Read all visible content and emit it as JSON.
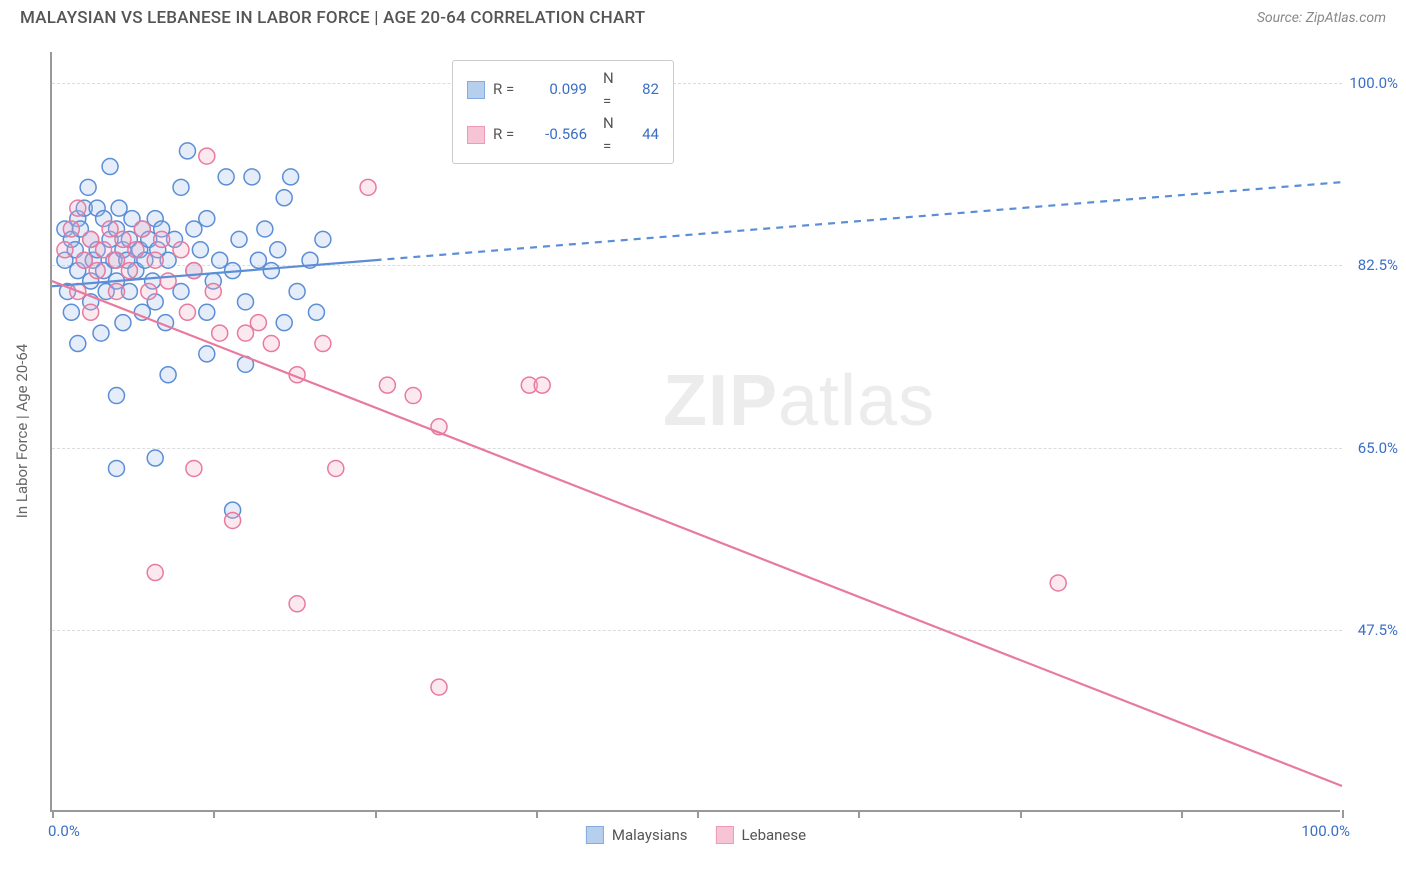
{
  "header": {
    "title": "MALAYSIAN VS LEBANESE IN LABOR FORCE | AGE 20-64 CORRELATION CHART",
    "source": "Source: ZipAtlas.com"
  },
  "chart": {
    "type": "scatter",
    "y_axis_title": "In Labor Force | Age 20-64",
    "xlim": [
      0,
      100
    ],
    "ylim": [
      30,
      103
    ],
    "x_ticks": [
      0,
      12.5,
      25,
      37.5,
      50,
      62.5,
      75,
      87.5,
      100
    ],
    "y_gridlines": [
      47.5,
      65.0,
      82.5,
      100.0
    ],
    "x_labels": {
      "start": "0.0%",
      "end": "100.0%"
    },
    "y_tick_labels": [
      "47.5%",
      "65.0%",
      "82.5%",
      "100.0%"
    ],
    "grid_color": "#dcdcdc",
    "axis_color": "#999999",
    "background": "#ffffff",
    "marker_radius": 8,
    "marker_stroke_width": 1.5,
    "marker_fill_opacity": 0.28,
    "line_width": 2.2,
    "series": [
      {
        "name": "Malaysians",
        "color_stroke": "#5b8ed6",
        "color_fill": "#9ebfe8",
        "R": "0.099",
        "N": "82",
        "trend": {
          "x1": 0,
          "y1": 80.5,
          "x2": 100,
          "y2": 90.5,
          "solid_until_x": 25
        },
        "points": [
          [
            1,
            83
          ],
          [
            1,
            86
          ],
          [
            1.2,
            80
          ],
          [
            1.5,
            85
          ],
          [
            1.5,
            78
          ],
          [
            1.8,
            84
          ],
          [
            2,
            87
          ],
          [
            2,
            75
          ],
          [
            2,
            82
          ],
          [
            2.2,
            86
          ],
          [
            2.5,
            83
          ],
          [
            2.5,
            88
          ],
          [
            2.8,
            90
          ],
          [
            3,
            81
          ],
          [
            3,
            79
          ],
          [
            3,
            85
          ],
          [
            3.2,
            83
          ],
          [
            3.5,
            84
          ],
          [
            3.5,
            88
          ],
          [
            3.8,
            76
          ],
          [
            4,
            82
          ],
          [
            4,
            87
          ],
          [
            4.2,
            80
          ],
          [
            4.5,
            85
          ],
          [
            4.5,
            92
          ],
          [
            4.8,
            83
          ],
          [
            5,
            81
          ],
          [
            5,
            86
          ],
          [
            5.2,
            88
          ],
          [
            5.5,
            84
          ],
          [
            5.5,
            77
          ],
          [
            5.8,
            83
          ],
          [
            6,
            85
          ],
          [
            6,
            80
          ],
          [
            6.2,
            87
          ],
          [
            6.5,
            82
          ],
          [
            6.8,
            84
          ],
          [
            7,
            86
          ],
          [
            7,
            78
          ],
          [
            7.2,
            83
          ],
          [
            7.5,
            85
          ],
          [
            7.8,
            81
          ],
          [
            8,
            87
          ],
          [
            8,
            79
          ],
          [
            8.2,
            84
          ],
          [
            8.5,
            86
          ],
          [
            8.8,
            77
          ],
          [
            9,
            83
          ],
          [
            9.5,
            85
          ],
          [
            10,
            80
          ],
          [
            10,
            90
          ],
          [
            10.5,
            93.5
          ],
          [
            11,
            82
          ],
          [
            11,
            86
          ],
          [
            11.5,
            84
          ],
          [
            12,
            87
          ],
          [
            12,
            78
          ],
          [
            12.5,
            81
          ],
          [
            13,
            83
          ],
          [
            13.5,
            91
          ],
          [
            14,
            82
          ],
          [
            14.5,
            85
          ],
          [
            15,
            79
          ],
          [
            15.5,
            91
          ],
          [
            16,
            83
          ],
          [
            16.5,
            86
          ],
          [
            17,
            82
          ],
          [
            17.5,
            84
          ],
          [
            18,
            89
          ],
          [
            18.5,
            91
          ],
          [
            19,
            80
          ],
          [
            20,
            83
          ],
          [
            20.5,
            78
          ],
          [
            21,
            85
          ],
          [
            5,
            63
          ],
          [
            8,
            64
          ],
          [
            9,
            72
          ],
          [
            12,
            74
          ],
          [
            14,
            59
          ],
          [
            15,
            73
          ],
          [
            5,
            70
          ],
          [
            18,
            77
          ]
        ]
      },
      {
        "name": "Lebanese",
        "color_stroke": "#e87aa0",
        "color_fill": "#f3b1c8",
        "R": "-0.566",
        "N": "44",
        "trend": {
          "x1": 0,
          "y1": 81,
          "x2": 100,
          "y2": 32.5,
          "solid_until_x": 100
        },
        "points": [
          [
            1,
            84
          ],
          [
            1.5,
            86
          ],
          [
            2,
            80
          ],
          [
            2,
            88
          ],
          [
            2.5,
            83
          ],
          [
            3,
            85
          ],
          [
            3,
            78
          ],
          [
            3.5,
            82
          ],
          [
            4,
            84
          ],
          [
            4.5,
            86
          ],
          [
            5,
            80
          ],
          [
            5,
            83
          ],
          [
            5.5,
            85
          ],
          [
            6,
            82
          ],
          [
            6.5,
            84
          ],
          [
            7,
            86
          ],
          [
            7.5,
            80
          ],
          [
            8,
            83
          ],
          [
            8.5,
            85
          ],
          [
            9,
            81
          ],
          [
            10,
            84
          ],
          [
            10.5,
            78
          ],
          [
            11,
            82
          ],
          [
            12,
            93
          ],
          [
            12.5,
            80
          ],
          [
            13,
            76
          ],
          [
            15,
            76
          ],
          [
            16,
            77
          ],
          [
            17,
            75
          ],
          [
            19,
            72
          ],
          [
            21,
            75
          ],
          [
            24.5,
            90
          ],
          [
            26,
            71
          ],
          [
            28,
            70
          ],
          [
            30,
            67
          ],
          [
            37,
            71
          ],
          [
            38,
            71
          ],
          [
            8,
            53
          ],
          [
            11,
            63
          ],
          [
            14,
            58
          ],
          [
            19,
            50
          ],
          [
            22,
            63
          ],
          [
            30,
            42
          ],
          [
            78,
            52
          ]
        ]
      }
    ],
    "legend_bottom": [
      {
        "label": "Malaysians",
        "stroke": "#5b8ed6",
        "fill": "#9ebfe8"
      },
      {
        "label": "Lebanese",
        "stroke": "#e87aa0",
        "fill": "#f3b1c8"
      }
    ],
    "watermark": {
      "bold": "ZIP",
      "light": "atlas"
    }
  }
}
